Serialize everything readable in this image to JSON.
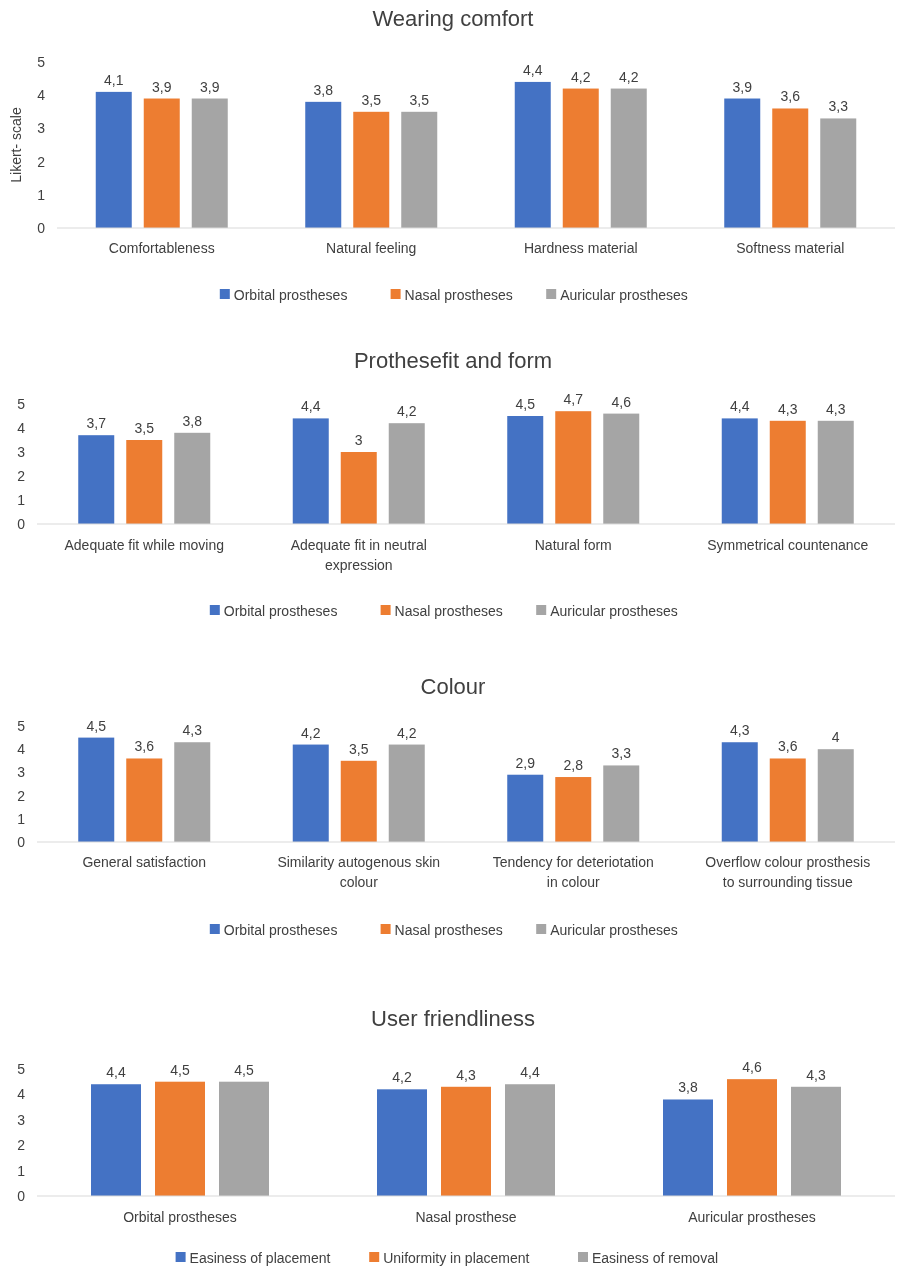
{
  "chart_data": [
    {
      "type": "bar",
      "title": "Wearing comfort",
      "ylabel": "Likert- scale",
      "categories": [
        "Comfortableness",
        "Natural feeling",
        "Hardness material",
        "Softness material"
      ],
      "ylim": [
        0,
        5
      ],
      "yticks": [
        0,
        1,
        2,
        3,
        4,
        5
      ],
      "grid": false,
      "legend": "bottom",
      "series": [
        {
          "name": "Orbital prostheses",
          "color": "#4472c4",
          "values": [
            4.1,
            3.8,
            4.4,
            3.9
          ],
          "value_labels": [
            "4,1",
            "3,8",
            "4,4",
            "3,9"
          ]
        },
        {
          "name": "Nasal prostheses",
          "color": "#ed7d31",
          "values": [
            3.9,
            3.5,
            4.2,
            3.6
          ],
          "value_labels": [
            "3,9",
            "3,5",
            "4,2",
            "3,6"
          ]
        },
        {
          "name": "Auricular prostheses",
          "color": "#a5a5a5",
          "values": [
            3.9,
            3.5,
            4.2,
            3.3
          ],
          "value_labels": [
            "3,9",
            "3,5",
            "4,2",
            "3,3"
          ]
        }
      ]
    },
    {
      "type": "bar",
      "title": "Prothesefit and form",
      "categories": [
        "Adequate fit while moving",
        "Adequate fit in neutral expression",
        "Natural form",
        "Symmetrical countenance"
      ],
      "ylim": [
        0,
        5
      ],
      "yticks": [
        0,
        1,
        2,
        3,
        4,
        5
      ],
      "grid": false,
      "legend": "bottom",
      "series": [
        {
          "name": "Orbital prostheses",
          "color": "#4472c4",
          "values": [
            3.7,
            4.4,
            4.5,
            4.4
          ],
          "value_labels": [
            "3,7",
            "4,4",
            "4,5",
            "4,4"
          ]
        },
        {
          "name": "Nasal prostheses",
          "color": "#ed7d31",
          "values": [
            3.5,
            3,
            4.7,
            4.3
          ],
          "value_labels": [
            "3,5",
            "3",
            "4,7",
            "4,3"
          ]
        },
        {
          "name": "Auricular prostheses",
          "color": "#a5a5a5",
          "values": [
            3.8,
            4.2,
            4.6,
            4.3
          ],
          "value_labels": [
            "3,8",
            "4,2",
            "4,6",
            "4,3"
          ]
        }
      ]
    },
    {
      "type": "bar",
      "title": "Colour",
      "categories": [
        "General satisfaction",
        "Similarity autogenous skin colour",
        "Tendency for deteriotation in colour",
        "Overflow colour prosthesis to surrounding tissue"
      ],
      "ylim": [
        0,
        5
      ],
      "yticks": [
        0,
        1,
        2,
        3,
        4,
        5
      ],
      "grid": false,
      "legend": "bottom",
      "series": [
        {
          "name": "Orbital prostheses",
          "color": "#4472c4",
          "values": [
            4.5,
            4.2,
            2.9,
            4.3
          ],
          "value_labels": [
            "4,5",
            "4,2",
            "2,9",
            "4,3"
          ]
        },
        {
          "name": "Nasal prostheses",
          "color": "#ed7d31",
          "values": [
            3.6,
            3.5,
            2.8,
            3.6
          ],
          "value_labels": [
            "3,6",
            "3,5",
            "2,8",
            "3,6"
          ]
        },
        {
          "name": "Auricular prostheses",
          "color": "#a5a5a5",
          "values": [
            4.3,
            4.2,
            3.3,
            4
          ],
          "value_labels": [
            "4,3",
            "4,2",
            "3,3",
            "4"
          ]
        }
      ]
    },
    {
      "type": "bar",
      "title": "User friendliness",
      "categories": [
        "Orbital prostheses",
        "Nasal prosthese",
        "Auricular prostheses"
      ],
      "ylim": [
        0,
        5
      ],
      "yticks": [
        0,
        1,
        2,
        3,
        4,
        5
      ],
      "grid": false,
      "legend": "bottom",
      "series": [
        {
          "name": "Easiness of placement",
          "color": "#4472c4",
          "values": [
            4.4,
            4.2,
            3.8
          ],
          "value_labels": [
            "4,4",
            "4,2",
            "3,8"
          ]
        },
        {
          "name": "Uniformity in placement",
          "color": "#ed7d31",
          "values": [
            4.5,
            4.3,
            4.6
          ],
          "value_labels": [
            "4,5",
            "4,3",
            "4,6"
          ]
        },
        {
          "name": "Easiness of removal",
          "color": "#a5a5a5",
          "values": [
            4.5,
            4.4,
            4.3
          ],
          "value_labels": [
            "4,5",
            "4,4",
            "4,3"
          ]
        }
      ]
    }
  ]
}
